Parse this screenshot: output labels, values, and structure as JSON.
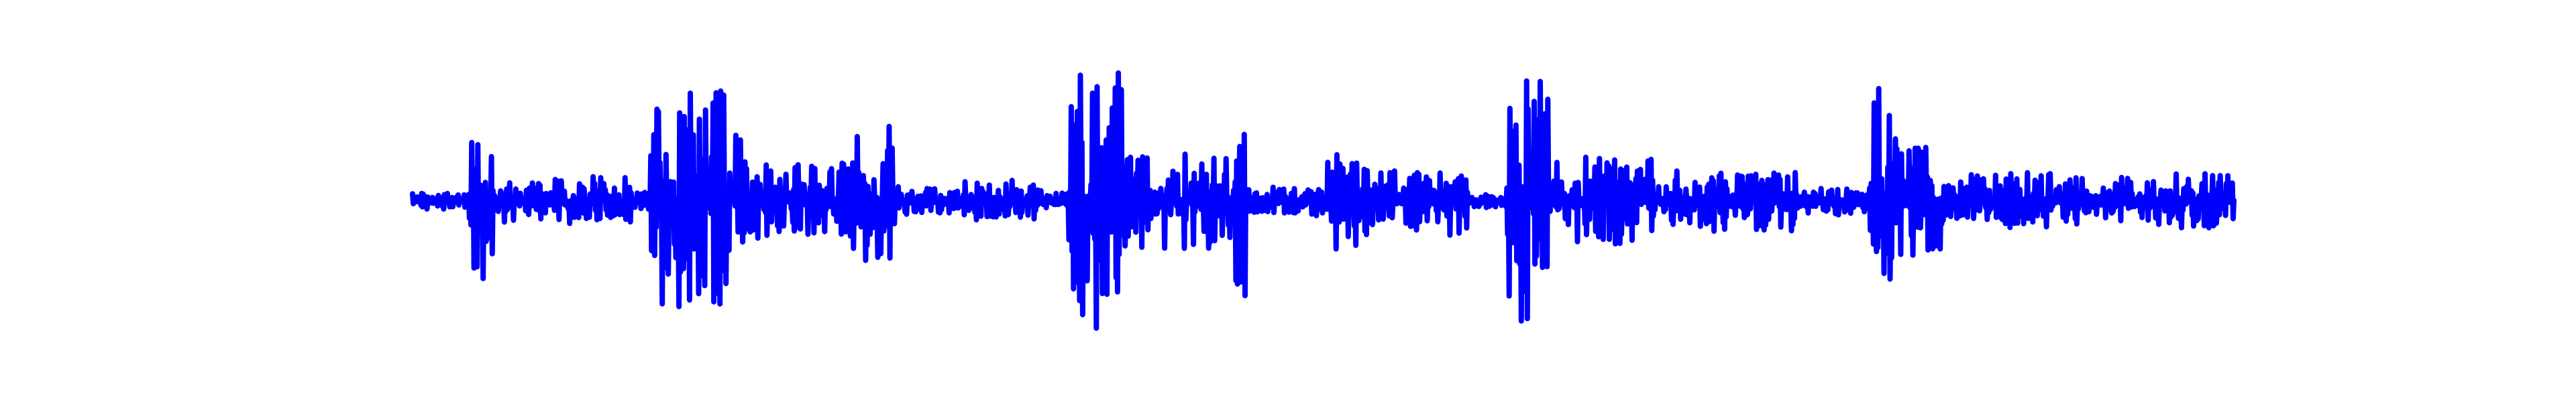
{
  "chart_data": {
    "type": "line",
    "x_range": [
      0,
      1
    ],
    "y_range": [
      -1,
      1
    ],
    "axes_visible": false,
    "grid": false,
    "series": [
      {
        "color": "#0000ff",
        "envelope_segments": [
          {
            "x": [
              0.0,
              0.03
            ],
            "amp": 0.06
          },
          {
            "x": [
              0.03,
              0.046
            ],
            "amp": 0.57
          },
          {
            "x": [
              0.046,
              0.12
            ],
            "amp": 0.17
          },
          {
            "x": [
              0.12,
              0.13
            ],
            "amp": 0.06
          },
          {
            "x": [
              0.13,
              0.182
            ],
            "amp": 0.8
          },
          {
            "x": [
              0.182,
              0.24
            ],
            "amp": 0.28
          },
          {
            "x": [
              0.24,
              0.265
            ],
            "amp": 0.55
          },
          {
            "x": [
              0.265,
              0.3
            ],
            "amp": 0.1
          },
          {
            "x": [
              0.3,
              0.345
            ],
            "amp": 0.15
          },
          {
            "x": [
              0.345,
              0.36
            ],
            "amp": 0.06
          },
          {
            "x": [
              0.36,
              0.39
            ],
            "amp": 0.95
          },
          {
            "x": [
              0.39,
              0.45
            ],
            "amp": 0.35
          },
          {
            "x": [
              0.45,
              0.458
            ],
            "amp": 0.9
          },
          {
            "x": [
              0.458,
              0.5
            ],
            "amp": 0.1
          },
          {
            "x": [
              0.5,
              0.52
            ],
            "amp": 0.4
          },
          {
            "x": [
              0.52,
              0.58
            ],
            "amp": 0.25
          },
          {
            "x": [
              0.58,
              0.6
            ],
            "amp": 0.05
          },
          {
            "x": [
              0.6,
              0.625
            ],
            "amp": 0.9
          },
          {
            "x": [
              0.625,
              0.68
            ],
            "amp": 0.35
          },
          {
            "x": [
              0.68,
              0.76
            ],
            "amp": 0.22
          },
          {
            "x": [
              0.76,
              0.8
            ],
            "amp": 0.1
          },
          {
            "x": [
              0.8,
              0.815
            ],
            "amp": 0.95
          },
          {
            "x": [
              0.815,
              0.84
            ],
            "amp": 0.4
          },
          {
            "x": [
              0.84,
              0.9
            ],
            "amp": 0.2
          },
          {
            "x": [
              0.9,
              0.96
            ],
            "amp": 0.17
          },
          {
            "x": [
              0.96,
              1.0
            ],
            "amp": 0.2
          }
        ]
      }
    ]
  }
}
